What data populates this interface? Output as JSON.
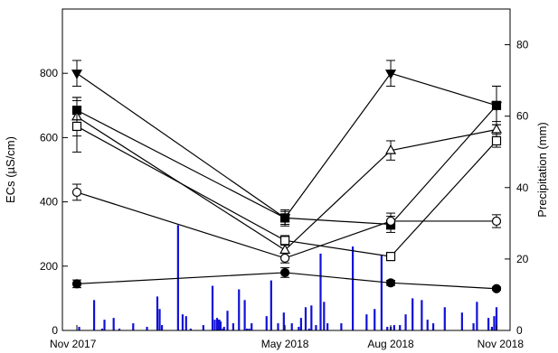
{
  "chart_data": {
    "type": "line",
    "xlabel": "",
    "ylabel": "ECs (µS/cm)",
    "y2label": "Precipitation (mm)",
    "categories": [
      "Nov 2017",
      "May 2018",
      "Aug 2018",
      "Nov 2018"
    ],
    "x_ticks_days": [
      0,
      181,
      273,
      365
    ],
    "ylim": [
      0,
      1000
    ],
    "yticks": [
      0,
      200,
      400,
      600,
      800
    ],
    "y2lim": [
      0,
      90
    ],
    "y2ticks": [
      0,
      20,
      40,
      60,
      80
    ],
    "grid": false,
    "line_color": "#000000",
    "bar_color": "#1010d8",
    "series": [
      {
        "marker": "triangle-down-filled",
        "values": [
          800,
          350,
          800,
          700
        ],
        "errors": [
          40,
          20,
          40,
          60
        ]
      },
      {
        "marker": "square-filled",
        "values": [
          685,
          350,
          330,
          700
        ],
        "errors": [
          40,
          25,
          25,
          60
        ]
      },
      {
        "marker": "triangle-up-open",
        "values": [
          665,
          250,
          560,
          625
        ],
        "errors": [
          60,
          20,
          30,
          25
        ]
      },
      {
        "marker": "square-open",
        "values": [
          635,
          280,
          230,
          590
        ],
        "errors": [
          80,
          15,
          10,
          20
        ]
      },
      {
        "marker": "circle-open",
        "values": [
          430,
          225,
          340,
          340
        ],
        "errors": [
          25,
          15,
          25,
          20
        ]
      },
      {
        "marker": "circle-filled",
        "values": [
          145,
          180,
          148,
          130
        ],
        "errors": [
          12,
          15,
          8,
          5
        ]
      }
    ],
    "precipitation": {
      "days": [
        2,
        15,
        22,
        24,
        32,
        37,
        49,
        61,
        70,
        72,
        74,
        88,
        92,
        95,
        99,
        110,
        118,
        120,
        122,
        123,
        124,
        125,
        127,
        128,
        131,
        136,
        141,
        146,
        148,
        150,
        152,
        165,
        169,
        175,
        180,
        187,
        193,
        195,
        199,
        202,
        204,
        208,
        212,
        215,
        218,
        230,
        240,
        252,
        259,
        265,
        270,
        273,
        276,
        281,
        286,
        292,
        300,
        305,
        310,
        320,
        335,
        345,
        348,
        358,
        361,
        363,
        365
      ],
      "values": [
        1,
        8.5,
        0.5,
        3,
        3.5,
        0.5,
        2,
        1,
        9.5,
        6,
        1.5,
        29.5,
        4.5,
        4,
        0.5,
        1.5,
        12.5,
        3,
        3.5,
        3,
        3,
        2.5,
        0.5,
        1,
        5.5,
        2,
        11.5,
        8.5,
        0.5,
        0.5,
        2,
        4,
        14,
        2,
        5,
        2,
        1,
        3.5,
        6.5,
        0.5,
        7,
        1.5,
        21.5,
        8,
        2,
        2,
        23.5,
        4.5,
        6,
        21,
        1,
        1,
        1.5,
        1.5,
        4.5,
        9,
        8.5,
        3,
        2,
        6.5,
        5,
        2,
        8,
        3.5,
        1,
        4,
        6.5
      ]
    }
  }
}
